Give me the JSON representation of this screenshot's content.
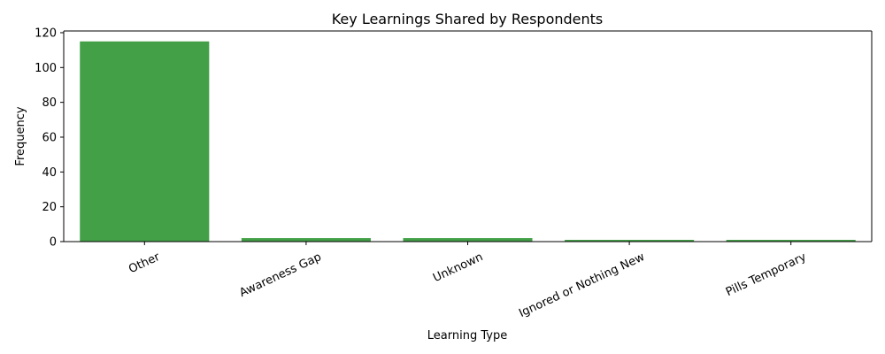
{
  "chart_data": {
    "type": "bar",
    "title": "Key Learnings Shared by Respondents",
    "xlabel": "Learning Type",
    "ylabel": "Frequency",
    "categories": [
      "Other",
      "Awareness Gap",
      "Unknown",
      "Ignored or Nothing New",
      "Pills Temporary"
    ],
    "values": [
      115,
      2,
      2,
      1,
      1
    ],
    "ylim": [
      0,
      121
    ],
    "yticks": [
      0,
      20,
      40,
      60,
      80,
      100,
      120
    ],
    "ytick_labels": [
      "0",
      "20",
      "40",
      "60",
      "80",
      "100",
      "120"
    ],
    "xtick_rotation": 25,
    "bar_color": "#43a047",
    "grid": false,
    "legend": "none"
  }
}
